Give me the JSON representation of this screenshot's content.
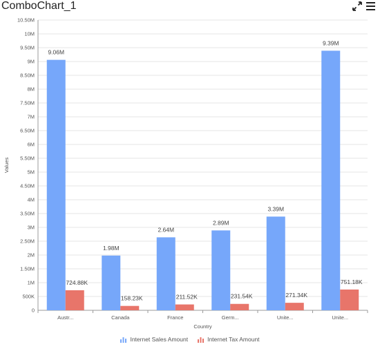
{
  "header": {
    "title": "ComboChart_1",
    "expand_icon": "expand-icon",
    "menu_icon": "hamburger-menu-icon"
  },
  "colors": {
    "internet_sales": "#76a7fa",
    "internet_tax": "#e8756a",
    "grid": "#e6e6e6",
    "axis": "#999999"
  },
  "chart_data": {
    "type": "bar",
    "xlabel": "Country",
    "ylabel": "Values",
    "ylim": [
      0,
      10500000
    ],
    "ytick_step": 500000,
    "ytick_labels": [
      "0",
      "500K",
      "1M",
      "1.50M",
      "2M",
      "2.50M",
      "3M",
      "3.50M",
      "4M",
      "4.50M",
      "5M",
      "5.50M",
      "6M",
      "6.50M",
      "7M",
      "7.50M",
      "8M",
      "8.50M",
      "9M",
      "9.50M",
      "10M",
      "10.50M"
    ],
    "categories": [
      "Austr...",
      "Canada",
      "France",
      "Germ...",
      "Unite...",
      "Unite..."
    ],
    "series": [
      {
        "name": "Internet Sales Amount",
        "color": "#76a7fa",
        "values": [
          9060000,
          1980000,
          2640000,
          2890000,
          3390000,
          9390000
        ],
        "labels": [
          "9.06M",
          "1.98M",
          "2.64M",
          "2.89M",
          "3.39M",
          "9.39M"
        ]
      },
      {
        "name": "Internet Tax Amount",
        "color": "#e8756a",
        "values": [
          724880,
          158230,
          211520,
          231540,
          271340,
          751180
        ],
        "labels": [
          "724.88K",
          "158.23K",
          "211.52K",
          "231.54K",
          "271.34K",
          "751.18K"
        ]
      }
    ],
    "grid": true,
    "legend_position": "bottom"
  }
}
